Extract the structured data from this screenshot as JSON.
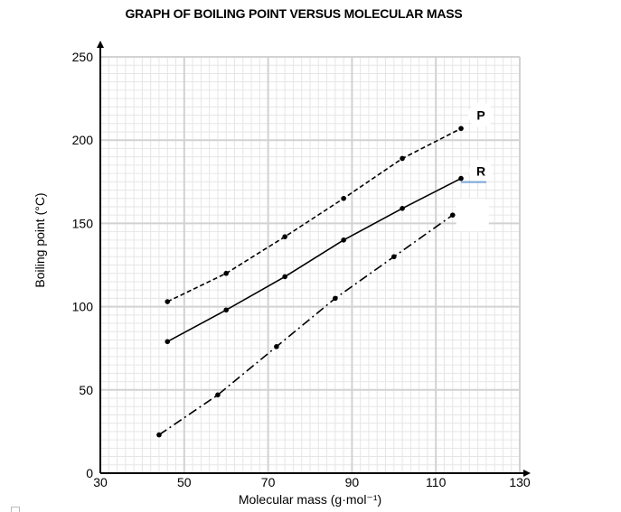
{
  "chart_data": {
    "type": "line",
    "title": "GRAPH OF BOILING POINT VERSUS MOLECULAR MASS",
    "xlabel": "Molecular mass (g·mol⁻¹)",
    "ylabel": "Boiling point (°C)",
    "xlim": [
      30,
      130
    ],
    "ylim": [
      0,
      250
    ],
    "xticks": [
      "30",
      "50",
      "70",
      "90",
      "110",
      "130"
    ],
    "yticks": [
      "0",
      "50",
      "100",
      "150",
      "200",
      "250"
    ],
    "grid": true,
    "series": [
      {
        "name": "P",
        "style": "dashed",
        "points": [
          [
            46,
            103
          ],
          [
            60,
            120
          ],
          [
            74,
            142
          ],
          [
            88,
            165
          ],
          [
            102,
            189
          ],
          [
            116,
            207
          ]
        ]
      },
      {
        "name": "R",
        "style": "solid",
        "points": [
          [
            46,
            79
          ],
          [
            60,
            98
          ],
          [
            74,
            118
          ],
          [
            88,
            140
          ],
          [
            102,
            159
          ],
          [
            116,
            177
          ]
        ]
      },
      {
        "name": "",
        "style": "dash-dot",
        "points": [
          [
            44,
            23
          ],
          [
            58,
            47
          ],
          [
            72,
            76
          ],
          [
            86,
            105
          ],
          [
            100,
            130
          ],
          [
            114,
            155
          ]
        ]
      }
    ]
  }
}
